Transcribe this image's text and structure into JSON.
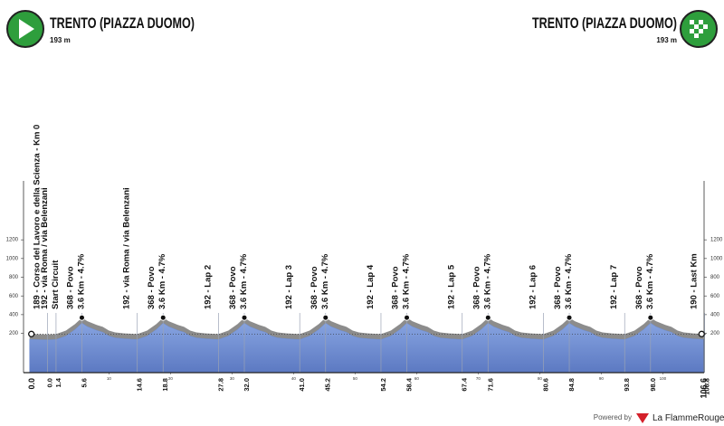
{
  "start": {
    "name": "TRENTO (PIAZZA DUOMO)",
    "elevation": "193 m"
  },
  "finish": {
    "name": "TRENTO (PIAZZA DUOMO)",
    "elevation": "193 m"
  },
  "footer": {
    "powered_by": "Powered by",
    "brand": "La FlammeRouge"
  },
  "chart_data": {
    "type": "area",
    "x": [
      -2.9,
      0,
      1.4,
      3.0,
      4.5,
      5.6,
      6.5,
      8.0,
      9.0,
      10.0,
      11.0,
      12.5,
      14.6,
      16.2,
      17.7,
      18.8,
      19.7,
      21.2,
      22.2,
      23.2,
      24.2,
      25.7,
      27.8,
      29.4,
      30.9,
      32.0,
      32.9,
      34.4,
      35.4,
      36.4,
      37.4,
      38.9,
      41.0,
      42.6,
      44.1,
      45.2,
      46.1,
      47.6,
      48.6,
      49.6,
      50.6,
      52.1,
      54.2,
      55.8,
      57.3,
      58.4,
      59.3,
      60.8,
      61.8,
      62.8,
      63.8,
      65.3,
      67.4,
      69.0,
      70.5,
      71.6,
      72.5,
      74.0,
      75.0,
      76.0,
      77.0,
      78.5,
      80.6,
      82.2,
      83.7,
      84.8,
      85.7,
      87.2,
      88.2,
      89.2,
      90.2,
      91.7,
      93.8,
      95.4,
      96.9,
      98.0,
      98.9,
      100.4,
      101.4,
      102.4,
      103.4,
      104.9,
      106.6
    ],
    "values": [
      193,
      189,
      192,
      230,
      300,
      368,
      330,
      290,
      270,
      230,
      210,
      200,
      192,
      230,
      300,
      368,
      330,
      290,
      270,
      230,
      210,
      200,
      192,
      230,
      300,
      368,
      330,
      290,
      270,
      230,
      210,
      200,
      192,
      230,
      300,
      368,
      330,
      290,
      270,
      230,
      210,
      200,
      192,
      230,
      300,
      368,
      330,
      290,
      270,
      230,
      210,
      200,
      192,
      230,
      300,
      368,
      330,
      290,
      270,
      230,
      210,
      200,
      192,
      230,
      300,
      368,
      330,
      290,
      270,
      230,
      210,
      200,
      192,
      230,
      300,
      368,
      330,
      290,
      270,
      230,
      210,
      200,
      193
    ],
    "profile_color": "#8c8c8c",
    "fill_color": "#6f8ed3",
    "xlim": [
      -3,
      107
    ],
    "ylim": [
      -220,
      1830
    ],
    "yticks": [
      200,
      400,
      600,
      800,
      1000,
      1200
    ],
    "xticks": [
      10,
      20,
      30,
      40,
      50,
      60,
      70,
      80,
      90,
      100
    ],
    "start_label": "0.0",
    "finish_label": "106.6",
    "markers": [
      {
        "km": {
          "value": 0,
          "label": "0.0"
        },
        "lines": [
          "189 - Corso del Lavoro e della Scienza - Km 0"
        ]
      },
      {
        "km": 1.4,
        "lines": [
          "192 - via Roma / via Belenzani",
          "Start Circuit"
        ]
      },
      {
        "km": 5.6,
        "lines": [
          "368 - Povo",
          "3.6 Km - 4.7%"
        ],
        "dot": true
      },
      {
        "km": 14.6,
        "lines": [
          "192 - via Roma / via Belenzani"
        ]
      },
      {
        "km": 18.8,
        "lines": [
          "368 - Povo",
          "3.6 Km - 4.7%"
        ],
        "dot": true
      },
      {
        "km": 27.8,
        "lines": [
          "192 - Lap 2"
        ]
      },
      {
        "km": {
          "value": 32,
          "label": "32.0"
        },
        "lines": [
          "368 - Povo",
          "3.6 Km - 4.7%"
        ],
        "dot": true
      },
      {
        "km": {
          "value": 41,
          "label": "41.0"
        },
        "lines": [
          "192 - Lap 3"
        ]
      },
      {
        "km": 45.2,
        "lines": [
          "368 - Povo",
          "3.6 Km - 4.7%"
        ],
        "dot": true
      },
      {
        "km": 54.2,
        "lines": [
          "192 - Lap 4"
        ]
      },
      {
        "km": 58.4,
        "lines": [
          "368 - Povo",
          "3.6 Km - 4.7%"
        ],
        "dot": true
      },
      {
        "km": 67.4,
        "lines": [
          "192 - Lap 5"
        ]
      },
      {
        "km": 71.6,
        "lines": [
          "368 - Povo",
          "3.6 Km - 4.7%"
        ],
        "dot": true
      },
      {
        "km": 80.6,
        "lines": [
          "192 - Lap 6"
        ]
      },
      {
        "km": 84.8,
        "lines": [
          "368 - Povo",
          "3.6 Km - 4.7%"
        ],
        "dot": true
      },
      {
        "km": 93.8,
        "lines": [
          "192 - Lap 7"
        ]
      },
      {
        "km": {
          "value": 98,
          "label": "98.0"
        },
        "lines": [
          "368 - Povo",
          "3.6 Km - 4.7%"
        ],
        "dot": true
      },
      {
        "km": 106.8,
        "lines": [
          "190 - Last Km"
        ]
      }
    ]
  }
}
